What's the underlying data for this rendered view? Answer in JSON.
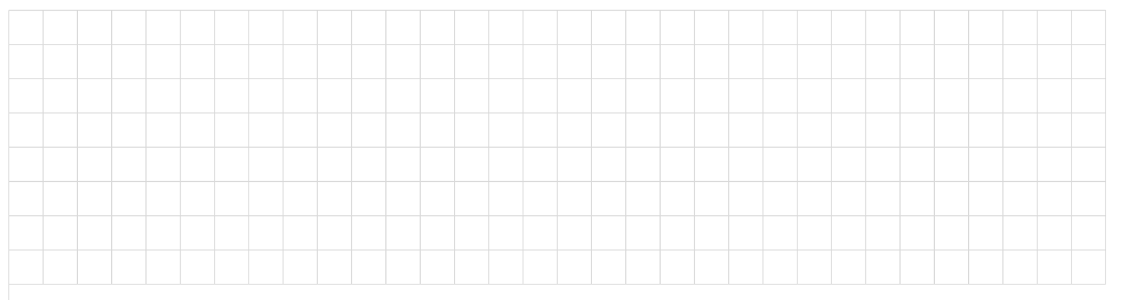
{
  "grid": {
    "columns": 32,
    "rows": 8,
    "line_color": "#d9d9d9",
    "background": "#ffffff"
  }
}
